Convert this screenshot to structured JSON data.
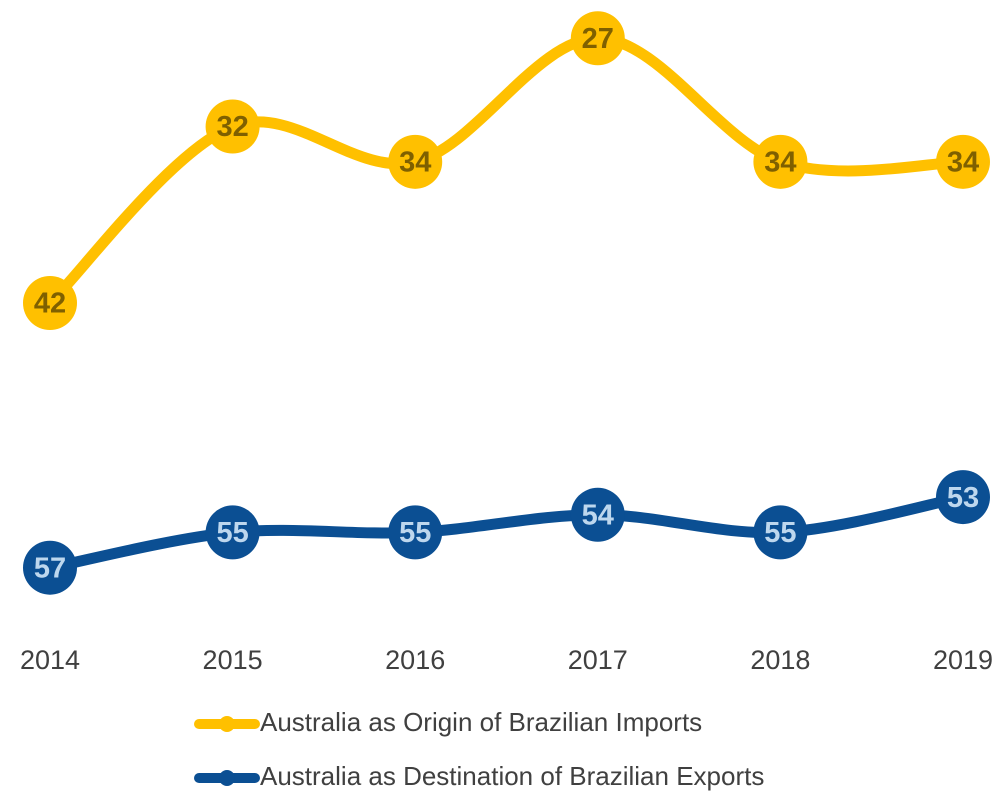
{
  "chart_data": {
    "type": "line",
    "categories": [
      "2014",
      "2015",
      "2016",
      "2017",
      "2018",
      "2019"
    ],
    "series": [
      {
        "name": "Australia as Origin of Brazilian Imports",
        "color": "#ffc000",
        "label_color": "#7f6000",
        "values": [
          42,
          32,
          34,
          27,
          34,
          34
        ]
      },
      {
        "name": "Australia as Destination of Brazilian Exports",
        "color": "#0b4f93",
        "label_color": "#bdd7ee",
        "values": [
          57,
          55,
          55,
          54,
          55,
          53
        ]
      }
    ],
    "ylim": [
      59,
      25
    ],
    "smooth": true
  }
}
